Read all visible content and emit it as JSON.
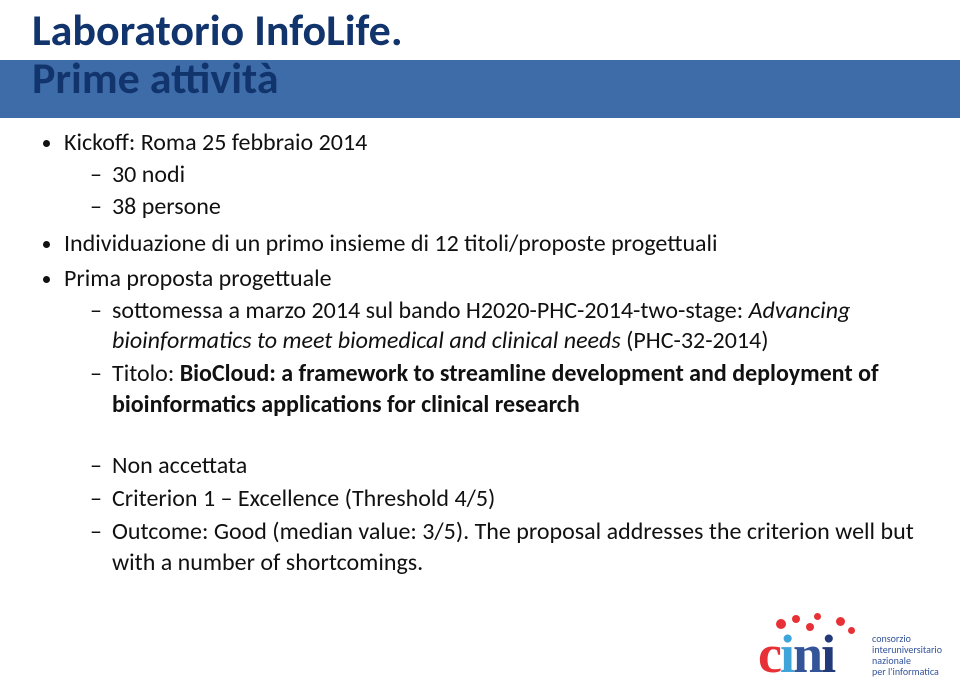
{
  "title_line1": "Laboratorio InfoLife.",
  "title_line2": "Prime attività",
  "bullets": {
    "b1": "Kickoff: Roma 25 febbraio 2014",
    "b1_s1": "30 nodi",
    "b1_s2": "38 persone",
    "b2": "Individuazione di un primo insieme di 12 titoli/proposte progettuali",
    "b3": "Prima proposta progettuale",
    "b3_s1_a": "sottomessa a marzo 2014 sul bando H2020-PHC-2014-two-stage: ",
    "b3_s1_b": "Advancing bioinformatics to meet biomedical and clinical needs",
    "b3_s1_c": " (PHC-32-2014)",
    "b3_s2_a": "Titolo: ",
    "b3_s2_b": "BioCloud: a framework to streamline development and deployment of bioinformatics applications for clinical research",
    "b3_s3": "Non accettata",
    "b3_s4": "Criterion 1 – Excellence (Threshold 4/5)",
    "b3_s5": "Outcome: Good (median value: 3/5). The proposal addresses the criterion well but with a number of shortcomings."
  },
  "logo": {
    "c": "c",
    "i1": "i",
    "n": "n",
    "i2": "i",
    "tag1": "consorzio",
    "tag2": "interuniversitario",
    "tag3": "nazionale",
    "tag4": "per l'informatica"
  },
  "colors": {
    "header_bar": "#3e6ca9",
    "title": "#12346d",
    "text": "#111111",
    "logo_red": "#e73136",
    "logo_blue1": "#3fa4d9",
    "logo_blue2": "#34549a",
    "logo_blue3": "#233a7a"
  },
  "typography": {
    "title_fontsize": 44,
    "body_fontsize": 24,
    "logo_letter_fontsize": 54,
    "logo_tag_fontsize": 10
  }
}
